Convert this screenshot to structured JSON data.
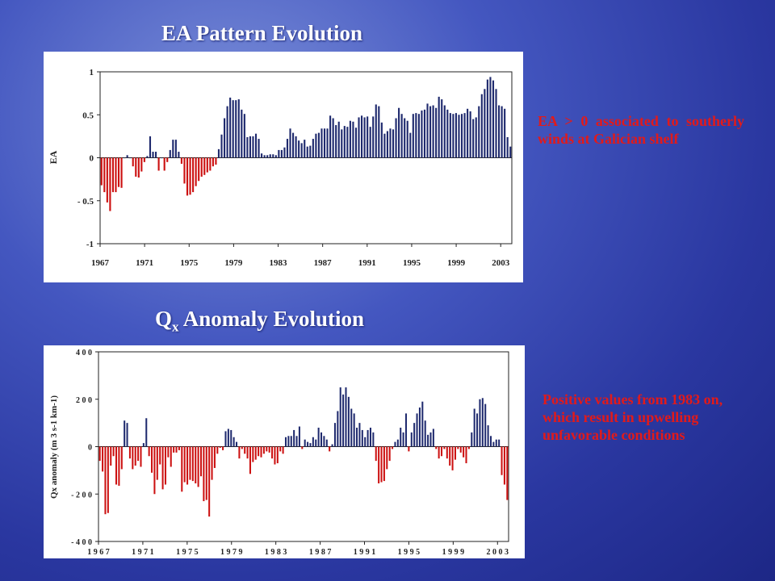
{
  "titles": {
    "ea": "EA Pattern Evolution",
    "qx_main": "Q",
    "qx_sub": "x",
    "qx_rest": " Anomaly Evolution"
  },
  "notes": {
    "ea": "EA > 0 associated to southerly winds at Galician shelf",
    "qx": "Positive values from 1983 on, which result in upwelling unfavorable conditions",
    "ea_color": "#e21a1a",
    "qx_color": "#e21a1a"
  },
  "colors": {
    "positive": "#1f2a6e",
    "negative": "#cc1010"
  },
  "chart_data": [
    {
      "type": "bar",
      "title": "EA Pattern Evolution",
      "ylabel": "EA",
      "ylim": [
        -1,
        1
      ],
      "yticks": [
        1,
        0.5,
        0,
        -0.5,
        -1
      ],
      "ytick_labels": [
        "1",
        "0.5",
        "0",
        "- 0.5",
        "-1"
      ],
      "xtick_labels": [
        "1967",
        "1971",
        "1975",
        "1979",
        "1983",
        "1987",
        "1991",
        "1995",
        "1999",
        "2003"
      ],
      "x_start": 1967,
      "x_end": 2004,
      "values": [
        -0.32,
        -0.4,
        -0.52,
        -0.62,
        -0.4,
        -0.4,
        -0.34,
        -0.35,
        0.0,
        0.03,
        0.0,
        -0.1,
        -0.22,
        -0.23,
        -0.16,
        -0.05,
        0.02,
        0.25,
        0.07,
        0.07,
        -0.15,
        0.0,
        -0.15,
        -0.05,
        0.09,
        0.21,
        0.21,
        0.07,
        -0.07,
        -0.3,
        -0.44,
        -0.43,
        -0.4,
        -0.33,
        -0.27,
        -0.22,
        -0.2,
        -0.17,
        -0.15,
        -0.1,
        -0.08,
        0.1,
        0.27,
        0.46,
        0.6,
        0.7,
        0.67,
        0.67,
        0.68,
        0.56,
        0.51,
        0.24,
        0.25,
        0.25,
        0.28,
        0.22,
        0.05,
        0.03,
        0.03,
        0.04,
        0.04,
        0.03,
        0.09,
        0.09,
        0.12,
        0.22,
        0.34,
        0.29,
        0.25,
        0.2,
        0.17,
        0.21,
        0.13,
        0.14,
        0.22,
        0.28,
        0.29,
        0.34,
        0.34,
        0.34,
        0.49,
        0.46,
        0.38,
        0.42,
        0.33,
        0.37,
        0.36,
        0.43,
        0.42,
        0.35,
        0.47,
        0.49,
        0.47,
        0.48,
        0.36,
        0.48,
        0.62,
        0.6,
        0.41,
        0.28,
        0.31,
        0.34,
        0.33,
        0.46,
        0.58,
        0.51,
        0.46,
        0.43,
        0.29,
        0.51,
        0.52,
        0.51,
        0.55,
        0.56,
        0.63,
        0.6,
        0.61,
        0.58,
        0.71,
        0.68,
        0.61,
        0.56,
        0.52,
        0.51,
        0.52,
        0.5,
        0.51,
        0.52,
        0.57,
        0.54,
        0.45,
        0.47,
        0.6,
        0.74,
        0.8,
        0.91,
        0.94,
        0.9,
        0.8,
        0.61,
        0.6,
        0.57,
        0.24,
        0.13
      ]
    },
    {
      "type": "bar",
      "title": "Qx Anomaly Evolution",
      "ylabel": "Qx anomaly (m 3 s-1 km-1)",
      "ylim": [
        -400,
        400
      ],
      "yticks": [
        400,
        200,
        0,
        -200,
        -400
      ],
      "ytick_labels": [
        "4 0 0",
        "2 0 0",
        "0",
        "- 2 0 0",
        "- 4 0 0"
      ],
      "xtick_labels": [
        "1 9 6 7",
        "1 9 7 1",
        "1 9 7 5",
        "1 9 7 9",
        "1 9 8 3",
        "1 9 8 7",
        "1 9 9 1",
        "1 9 9 5",
        "1 9 9 9",
        "2 0 0 3"
      ],
      "x_start": 1967,
      "x_end": 2004,
      "values": [
        -60,
        -105,
        -285,
        -280,
        -80,
        -40,
        -160,
        -165,
        -95,
        110,
        100,
        -50,
        -95,
        -80,
        -60,
        -85,
        15,
        120,
        -40,
        -110,
        -200,
        -140,
        -75,
        -180,
        -160,
        -45,
        -85,
        -25,
        -25,
        -15,
        -190,
        -150,
        -160,
        -140,
        -145,
        -155,
        -170,
        -125,
        -230,
        -225,
        -295,
        -140,
        -90,
        -30,
        -5,
        -15,
        65,
        75,
        70,
        40,
        20,
        -50,
        -10,
        -30,
        -50,
        -115,
        -65,
        -55,
        -40,
        -45,
        -30,
        -20,
        -25,
        -50,
        -75,
        -70,
        -20,
        -30,
        40,
        45,
        45,
        70,
        45,
        85,
        -10,
        30,
        20,
        15,
        40,
        30,
        80,
        60,
        45,
        30,
        -20,
        10,
        100,
        150,
        250,
        220,
        250,
        210,
        160,
        140,
        80,
        100,
        70,
        40,
        70,
        80,
        60,
        -60,
        -155,
        -150,
        -145,
        -95,
        -60,
        -10,
        20,
        30,
        80,
        60,
        140,
        -20,
        60,
        100,
        140,
        165,
        190,
        110,
        50,
        60,
        75,
        -10,
        -50,
        -40,
        -10,
        -50,
        -80,
        -100,
        -55,
        -10,
        -25,
        -45,
        -70,
        -10,
        60,
        160,
        140,
        200,
        205,
        180,
        90,
        45,
        20,
        30,
        30,
        -120,
        -160,
        -225
      ]
    }
  ]
}
